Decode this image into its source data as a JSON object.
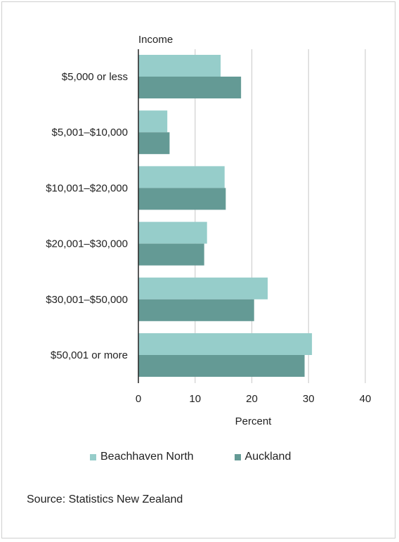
{
  "chart_data": {
    "type": "bar",
    "orientation": "horizontal",
    "title": "",
    "category_axis_title": "Income",
    "xlabel": "Percent",
    "xlim": [
      0,
      40
    ],
    "xticks": [
      0,
      10,
      20,
      30,
      40
    ],
    "categories": [
      "$5,000 or less",
      "$5,001–$10,000",
      "$10,001–$20,000",
      "$20,001–$30,000",
      "$30,001–$50,000",
      "$50,001 or more"
    ],
    "series": [
      {
        "name": "Beachhaven North",
        "color": "#96cdca",
        "values": [
          14.5,
          5.1,
          15.2,
          12.1,
          22.8,
          30.6
        ]
      },
      {
        "name": "Auckland",
        "color": "#649a95",
        "values": [
          18.1,
          5.5,
          15.4,
          11.6,
          20.4,
          29.3
        ]
      }
    ],
    "grid": "vertical",
    "legend_position": "bottom"
  },
  "source": "Source: Statistics New Zealand"
}
